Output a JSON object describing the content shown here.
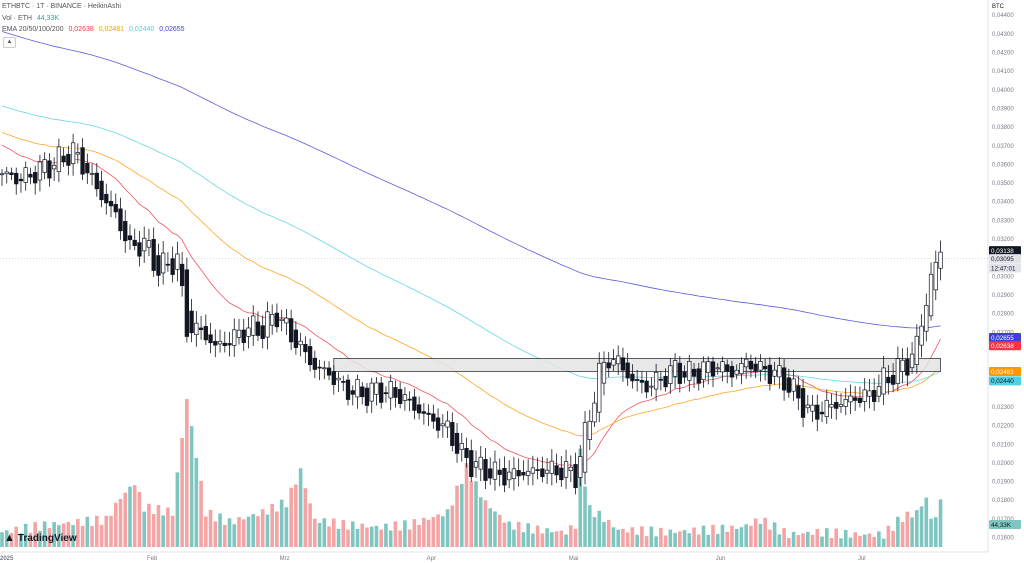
{
  "legend": {
    "symbol": "ETHBTC",
    "timeframe": "1T",
    "exchange": "BINANCE",
    "chart_style": "HeikinAshi",
    "vol_label": "Vol · ETH",
    "vol_value": "44,33K",
    "ema_label": "EMA 20/50/100/200",
    "ema_values": [
      "0,02638",
      "0,02481",
      "0,02440",
      "0,02655"
    ]
  },
  "price_axis": {
    "unit": "BTC",
    "ticks": [
      "0,04400",
      "0,04300",
      "0,04200",
      "0,04100",
      "0,04000",
      "0,03900",
      "0,03800",
      "0,03700",
      "0,03600",
      "0,03500",
      "0,03400",
      "0,03300",
      "0,03200",
      "0,03000",
      "0,02900",
      "0,02800",
      "0,02700",
      "0,02500",
      "0,02300",
      "0,02200",
      "0,02100",
      "0,02000",
      "0,01900",
      "0,01800",
      "0,01700",
      "0,01600"
    ],
    "last_price": "0,03138",
    "ha_close": "0,03095",
    "countdown": "12:47:01",
    "vol_badge": "44,33K"
  },
  "time_axis": {
    "labels": [
      "2025",
      "Feb",
      "Mrz",
      "Apr",
      "Mai",
      "Jun",
      "Jul"
    ]
  },
  "logo": "TradingView",
  "colors": {
    "up_body": "#ffffff",
    "up_outline": "#131722",
    "down_body": "#131722",
    "ema20": "#f23645",
    "ema50": "#ff9800",
    "ema100": "#4dd0e1",
    "ema200": "#3f3fd6",
    "vol_up": "#7fc6c0",
    "vol_down": "#f4a4a4",
    "zone_fill": "#e5e5e5"
  },
  "chart_data": {
    "type": "candlestick",
    "title": "ETHBTC · 1T · BINANCE · HeikinAshi",
    "ylabel": "BTC",
    "ylim": [
      0.0156,
      0.0446
    ],
    "x_labels": {
      "2025": 0,
      "Feb": 31,
      "Mrz": 59,
      "Apr": 90,
      "Mai": 120,
      "Jun": 151,
      "Jul": 181
    },
    "anchors": [
      [
        0,
        0.0355
      ],
      [
        4,
        0.0352
      ],
      [
        8,
        0.0357
      ],
      [
        12,
        0.0362
      ],
      [
        15,
        0.0367
      ],
      [
        18,
        0.0356
      ],
      [
        21,
        0.0343
      ],
      [
        24,
        0.0333
      ],
      [
        27,
        0.0315
      ],
      [
        30,
        0.0318
      ],
      [
        33,
        0.0304
      ],
      [
        37,
        0.0309
      ],
      [
        39,
        0.0272
      ],
      [
        42,
        0.0271
      ],
      [
        45,
        0.0262
      ],
      [
        48,
        0.0266
      ],
      [
        52,
        0.0272
      ],
      [
        55,
        0.0272
      ],
      [
        58,
        0.028
      ],
      [
        61,
        0.0268
      ],
      [
        63,
        0.0262
      ],
      [
        66,
        0.0251
      ],
      [
        69,
        0.0248
      ],
      [
        72,
        0.024
      ],
      [
        76,
        0.0237
      ],
      [
        80,
        0.0239
      ],
      [
        84,
        0.0236
      ],
      [
        87,
        0.023
      ],
      [
        90,
        0.0224
      ],
      [
        94,
        0.0218
      ],
      [
        97,
        0.0204
      ],
      [
        100,
        0.0198
      ],
      [
        103,
        0.0195
      ],
      [
        106,
        0.0193
      ],
      [
        110,
        0.0195
      ],
      [
        114,
        0.0196
      ],
      [
        118,
        0.0196
      ],
      [
        121,
        0.0194
      ],
      [
        122,
        0.0203
      ],
      [
        124,
        0.0226
      ],
      [
        126,
        0.0248
      ],
      [
        128,
        0.0256
      ],
      [
        130,
        0.0254
      ],
      [
        133,
        0.0244
      ],
      [
        136,
        0.0241
      ],
      [
        139,
        0.0245
      ],
      [
        142,
        0.025
      ],
      [
        145,
        0.0247
      ],
      [
        148,
        0.025
      ],
      [
        151,
        0.0252
      ],
      [
        154,
        0.0248
      ],
      [
        157,
        0.0254
      ],
      [
        160,
        0.025
      ],
      [
        163,
        0.0248
      ],
      [
        166,
        0.0242
      ],
      [
        168,
        0.0234
      ],
      [
        171,
        0.0226
      ],
      [
        174,
        0.023
      ],
      [
        177,
        0.0232
      ],
      [
        180,
        0.0235
      ],
      [
        183,
        0.0236
      ],
      [
        186,
        0.0244
      ],
      [
        189,
        0.025
      ],
      [
        191,
        0.0254
      ],
      [
        193,
        0.0262
      ],
      [
        194,
        0.0276
      ],
      [
        195,
        0.0288
      ],
      [
        196,
        0.0298
      ],
      [
        197,
        0.0306
      ],
      [
        198,
        0.0313
      ]
    ],
    "volume_anchors": [
      [
        0,
        6
      ],
      [
        10,
        9
      ],
      [
        22,
        11
      ],
      [
        25,
        20
      ],
      [
        28,
        26
      ],
      [
        30,
        16
      ],
      [
        36,
        14
      ],
      [
        39,
        60
      ],
      [
        43,
        14
      ],
      [
        48,
        10
      ],
      [
        55,
        14
      ],
      [
        60,
        18
      ],
      [
        63,
        31
      ],
      [
        66,
        11
      ],
      [
        72,
        9
      ],
      [
        80,
        8
      ],
      [
        86,
        9
      ],
      [
        94,
        14
      ],
      [
        98,
        32
      ],
      [
        102,
        18
      ],
      [
        107,
        9
      ],
      [
        113,
        7
      ],
      [
        119,
        6
      ],
      [
        121,
        9
      ],
      [
        122,
        38
      ],
      [
        124,
        15
      ],
      [
        126,
        13
      ],
      [
        130,
        7
      ],
      [
        140,
        6
      ],
      [
        150,
        7
      ],
      [
        156,
        8
      ],
      [
        160,
        11
      ],
      [
        166,
        5
      ],
      [
        172,
        6
      ],
      [
        180,
        5
      ],
      [
        186,
        5
      ],
      [
        190,
        12
      ],
      [
        193,
        14
      ],
      [
        195,
        20
      ],
      [
        196,
        11
      ],
      [
        197,
        13
      ],
      [
        198,
        18
      ]
    ],
    "ema_lines": [
      {
        "name": "EMA 20",
        "period": 20,
        "value": 0.02638
      },
      {
        "name": "EMA 50",
        "period": 50,
        "value": 0.02481
      },
      {
        "name": "EMA 100",
        "period": 100,
        "value": 0.0244
      },
      {
        "name": "EMA 200",
        "period": 200,
        "value": 0.02655
      }
    ],
    "resistance_zone": {
      "top": 0.0256,
      "bottom": 0.0249,
      "start_day": 70,
      "end_day": 198
    },
    "last_price": 0.03138,
    "grid": false,
    "legend_position": "top-left"
  }
}
